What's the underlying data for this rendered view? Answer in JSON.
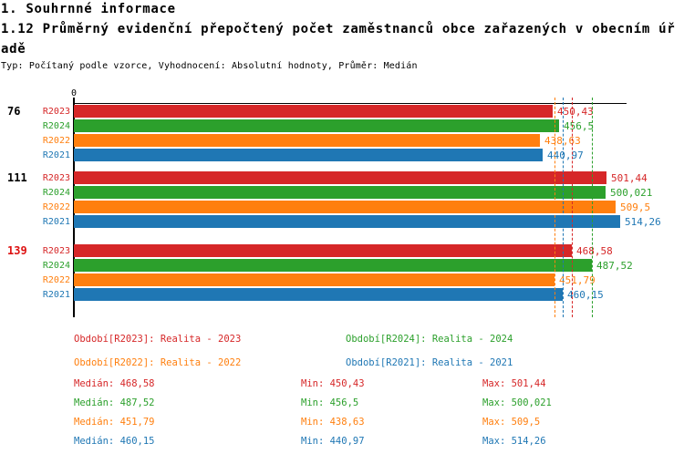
{
  "header": {
    "line1": "1. Souhrnné informace",
    "line2": "1.12 Průměrný evidenční přepočtený počet zaměstnanců obce zařazených v obecním úř",
    "line3": "adě",
    "meta": "Typ: Počítaný podle vzorce, Vyhodnocení: Absolutní hodnoty, Průměr: Medián"
  },
  "chart_data": {
    "type": "bar",
    "orientation": "horizontal",
    "title": "1.12 Průměrný evidenční přepočtený počet zaměstnanců obce zařazených v obecním úřadě",
    "axis": {
      "origin_label": "0",
      "min": 0,
      "max": 520,
      "grid": false
    },
    "series_order": [
      "R2023",
      "R2024",
      "R2022",
      "R2021"
    ],
    "palette": {
      "R2023": "#d62728",
      "R2024": "#2ca02c",
      "R2022": "#ff7f0e",
      "R2021": "#1f77b4"
    },
    "groups": [
      {
        "label": "76",
        "label_color": "#000000",
        "bars": [
          {
            "series": "R2023",
            "value": 450.43,
            "label": "450,43"
          },
          {
            "series": "R2024",
            "value": 456.5,
            "label": "456,5"
          },
          {
            "series": "R2022",
            "value": 438.63,
            "label": "438,63"
          },
          {
            "series": "R2021",
            "value": 440.97,
            "label": "440,97"
          }
        ]
      },
      {
        "label": "111",
        "label_color": "#000000",
        "bars": [
          {
            "series": "R2023",
            "value": 501.44,
            "label": "501,44"
          },
          {
            "series": "R2024",
            "value": 500.021,
            "label": "500,021"
          },
          {
            "series": "R2022",
            "value": 509.5,
            "label": "509,5"
          },
          {
            "series": "R2021",
            "value": 514.26,
            "label": "514,26"
          }
        ]
      },
      {
        "label": "139",
        "label_color": "#dd1111",
        "bars": [
          {
            "series": "R2023",
            "value": 468.58,
            "label": "468,58"
          },
          {
            "series": "R2024",
            "value": 487.52,
            "label": "487,52"
          },
          {
            "series": "R2022",
            "value": 451.79,
            "label": "451,79"
          },
          {
            "series": "R2021",
            "value": 460.15,
            "label": "460,15"
          }
        ]
      }
    ],
    "median_lines": [
      {
        "series": "R2022",
        "value": 451.79
      },
      {
        "series": "R2021",
        "value": 460.15
      },
      {
        "series": "R2023",
        "value": 468.58
      },
      {
        "series": "R2024",
        "value": 487.52
      }
    ]
  },
  "legend": {
    "items": [
      {
        "series": "R2023",
        "label": "Období[R2023]: Realita - 2023"
      },
      {
        "series": "R2024",
        "label": "Období[R2024]: Realita - 2024"
      },
      {
        "series": "R2022",
        "label": "Období[R2022]: Realita - 2022"
      },
      {
        "series": "R2021",
        "label": "Období[R2021]: Realita - 2021"
      }
    ]
  },
  "stats": {
    "rows": [
      {
        "series": "R2023",
        "median": "Medián: 468,58",
        "min": "Min: 450,43",
        "max": "Max: 501,44"
      },
      {
        "series": "R2024",
        "median": "Medián: 487,52",
        "min": "Min: 456,5",
        "max": "Max: 500,021"
      },
      {
        "series": "R2022",
        "median": "Medián: 451,79",
        "min": "Min: 438,63",
        "max": "Max: 509,5"
      },
      {
        "series": "R2021",
        "median": "Medián: 460,15",
        "min": "Min: 440,97",
        "max": "Max: 514,26"
      }
    ]
  }
}
